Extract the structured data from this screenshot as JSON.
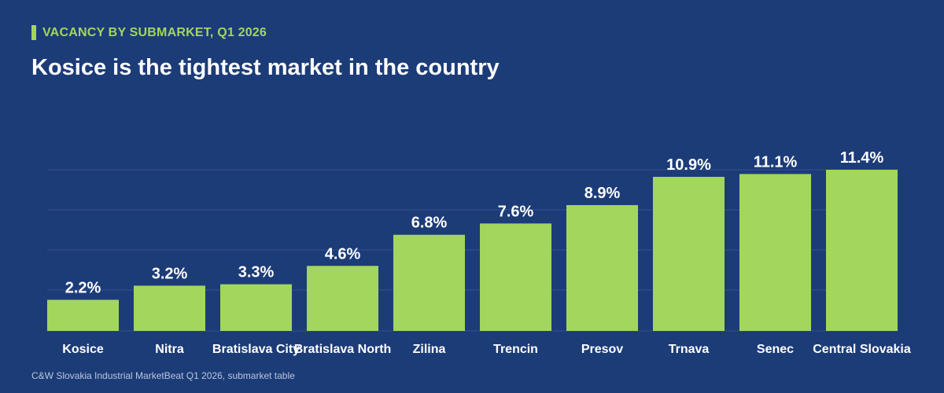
{
  "header": {
    "kicker": "VACANCY BY SUBMARKET, Q1 2026",
    "title": "Kosice is the tightest market in the country"
  },
  "footer": {
    "source": "C&W Slovakia Industrial MarketBeat Q1 2026, submarket table"
  },
  "colors": {
    "background": "#1c3c78",
    "bar": "#a3d65c",
    "accent": "#a3d65c",
    "gridline": "#33508a",
    "label": "#ffffff"
  },
  "chart_data": {
    "type": "bar",
    "categories": [
      "Kosice",
      "Nitra",
      "Bratislava City",
      "Bratislava North",
      "Zilina",
      "Trencin",
      "Presov",
      "Trnava",
      "Senec",
      "Central Slovakia"
    ],
    "values": [
      2.2,
      3.2,
      3.3,
      4.6,
      6.8,
      7.6,
      8.9,
      10.9,
      11.1,
      11.4
    ],
    "value_labels": [
      "2.2%",
      "3.2%",
      "3.3%",
      "4.6%",
      "6.8%",
      "7.6%",
      "8.9%",
      "10.9%",
      "11.1%",
      "11.4%"
    ],
    "title": "Kosice is the tightest market in the country",
    "xlabel": "",
    "ylabel": "",
    "ylim": [
      0,
      11.4
    ],
    "grid": true,
    "unit": "%"
  }
}
